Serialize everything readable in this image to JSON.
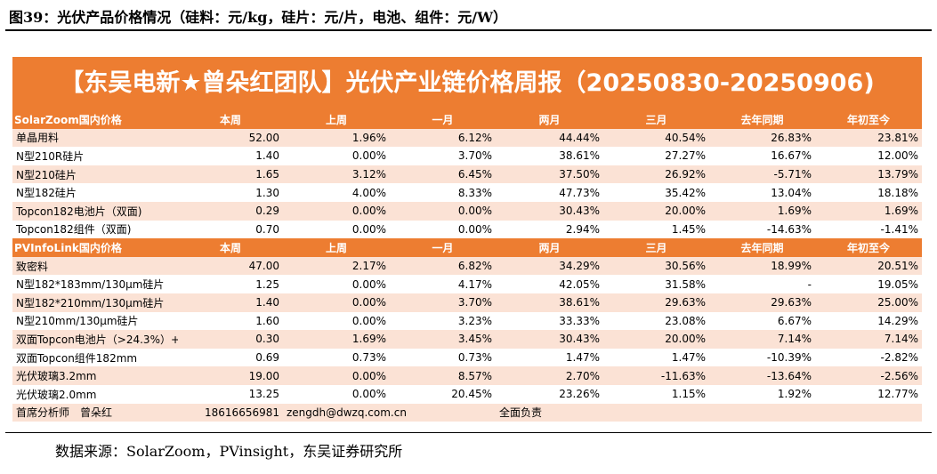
{
  "caption": "图39：光伏产品价格情况（硅料：元/kg，硅片：元/片，电池、组件：元/W）",
  "banner_title": "【东吴电新★曾朵红团队】光伏产业链价格周报（20250830-20250906)",
  "columns": [
    "本周",
    "上周",
    "一月",
    "两月",
    "三月",
    "去年同期",
    "年初至今"
  ],
  "section1": {
    "title": "SolarZoom国内价格",
    "rows": [
      {
        "name": "单晶用料",
        "values": [
          "52.00",
          "1.96%",
          "6.12%",
          "44.44%",
          "40.54%",
          "26.83%",
          "23.81%"
        ]
      },
      {
        "name": "N型210R硅片",
        "values": [
          "1.40",
          "0.00%",
          "3.70%",
          "38.61%",
          "27.27%",
          "16.67%",
          "12.00%"
        ]
      },
      {
        "name": "N型210硅片",
        "values": [
          "1.65",
          "3.12%",
          "6.45%",
          "37.50%",
          "26.92%",
          "-5.71%",
          "13.79%"
        ]
      },
      {
        "name": "N型182硅片",
        "values": [
          "1.30",
          "4.00%",
          "8.33%",
          "47.73%",
          "35.42%",
          "13.04%",
          "18.18%"
        ]
      },
      {
        "name": "Topcon182电池片（双面)",
        "values": [
          "0.29",
          "0.00%",
          "0.00%",
          "30.43%",
          "20.00%",
          "1.69%",
          "1.69%"
        ]
      },
      {
        "name": "Topcon182组件（双面)",
        "values": [
          "0.70",
          "0.00%",
          "0.00%",
          "2.94%",
          "1.45%",
          "-14.63%",
          "-1.41%"
        ]
      }
    ]
  },
  "section2": {
    "title": "PVInfoLink国内价格",
    "rows": [
      {
        "name": "致密料",
        "values": [
          "47.00",
          "2.17%",
          "6.82%",
          "34.29%",
          "30.56%",
          "18.99%",
          "20.51%"
        ]
      },
      {
        "name": "N型182*183mm/130μm硅片",
        "values": [
          "1.25",
          "0.00%",
          "4.17%",
          "42.05%",
          "31.58%",
          "-",
          "19.05%"
        ]
      },
      {
        "name": "N型182*210mm/130μm硅片",
        "values": [
          "1.40",
          "0.00%",
          "3.70%",
          "38.61%",
          "29.63%",
          "29.63%",
          "25.00%"
        ]
      },
      {
        "name": "N型210mm/130μm硅片",
        "values": [
          "1.60",
          "0.00%",
          "3.23%",
          "33.33%",
          "23.08%",
          "6.67%",
          "14.29%"
        ]
      },
      {
        "name": "双面Topcon电池片（>24.3%）+",
        "values": [
          "0.30",
          "1.69%",
          "3.45%",
          "30.43%",
          "20.00%",
          "7.14%",
          "7.14%"
        ]
      },
      {
        "name": "双面Topcon组件182mm",
        "values": [
          "0.69",
          "0.73%",
          "0.73%",
          "1.47%",
          "1.47%",
          "-10.39%",
          "-2.82%"
        ]
      },
      {
        "name": "光伏玻璃3.2mm",
        "values": [
          "19.00",
          "0.00%",
          "8.57%",
          "2.70%",
          "-11.63%",
          "-13.64%",
          "-2.56%"
        ]
      },
      {
        "name": "光伏玻璃2.0mm",
        "values": [
          "13.25",
          "0.00%",
          "20.45%",
          "23.26%",
          "1.15%",
          "1.92%",
          "12.77%"
        ]
      }
    ]
  },
  "footer": {
    "analyst": "首席分析师　曾朵红",
    "phone": "18616656981",
    "email": "zengdh@dwzq.com.cn",
    "note": "全面负责"
  },
  "source": "数据来源：SolarZoom，PVinsight，东吴证券研究所",
  "colors": {
    "accent": "#ED7D31",
    "stripe": "#FBE2D5"
  }
}
